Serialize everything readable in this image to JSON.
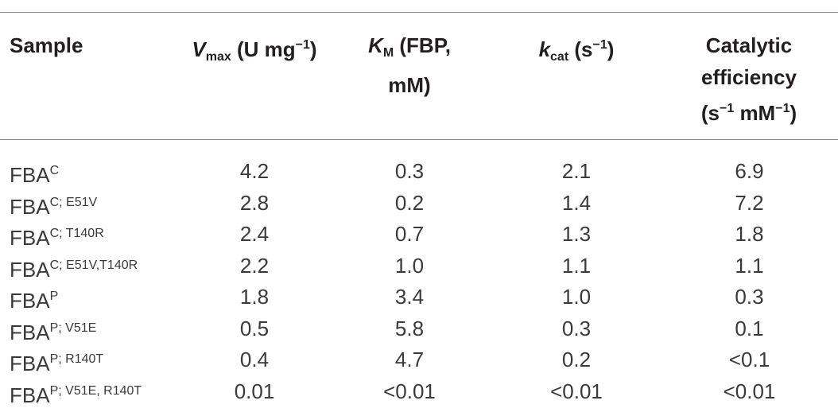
{
  "table": {
    "header": [
      [
        "Sample"
      ],
      [
        "V",
        "max",
        " (U mg",
        "−1",
        ")"
      ],
      [
        "K",
        "M",
        " (FBP, mM)"
      ],
      [
        "k",
        "cat",
        " (s",
        "−1",
        ")"
      ],
      [
        "Catalytic efficiency (s",
        "−1",
        " mM",
        "−1",
        ")"
      ]
    ],
    "rows": [
      {
        "sample": "FBA",
        "variant": "C",
        "values": [
          "4.2",
          "0.3",
          "2.1",
          "6.9"
        ]
      },
      {
        "sample": "FBA",
        "variant": "C; E51V",
        "values": [
          "2.8",
          "0.2",
          "1.4",
          "7.2"
        ]
      },
      {
        "sample": "FBA",
        "variant": "C; T140R",
        "values": [
          "2.4",
          "0.7",
          "1.3",
          "1.8"
        ]
      },
      {
        "sample": "FBA",
        "variant": "C; E51V,T140R",
        "values": [
          "2.2",
          "1.0",
          "1.1",
          "1.1"
        ]
      },
      {
        "sample": "FBA",
        "variant": "P",
        "values": [
          "1.8",
          "3.4",
          "1.0",
          "0.3"
        ]
      },
      {
        "sample": "FBA",
        "variant": "P; V51E",
        "values": [
          "0.5",
          "5.8",
          "0.3",
          "0.1"
        ]
      },
      {
        "sample": "FBA",
        "variant": "P; R140T",
        "values": [
          "0.4",
          "4.7",
          "0.2",
          "<0.1"
        ]
      },
      {
        "sample": "FBA",
        "variant": "P; V51E, R140T",
        "values": [
          "0.01",
          "<0.01",
          "<0.01",
          "<0.01"
        ]
      }
    ]
  }
}
